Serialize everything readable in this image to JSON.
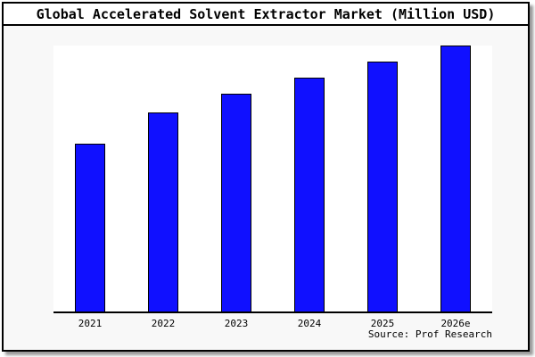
{
  "title_bar": {
    "title": "Global Accelerated Solvent Extractor Market (Million USD)"
  },
  "footer": {
    "source": "Source: Prof Research"
  },
  "colors": {
    "bar_fill": "#1010ff",
    "bar_border": "#000000",
    "frame_border": "#000000",
    "chart_background": "#f8f8f8",
    "plot_background": "#ffffff",
    "title_background": "#ffffff",
    "shadow": "#999999",
    "text": "#000000"
  },
  "chart_data": {
    "type": "bar",
    "title": "Global Accelerated Solvent Extractor Market (Million USD)",
    "categories": [
      "2021",
      "2022",
      "2023",
      "2024",
      "2025",
      "2026e"
    ],
    "values": [
      63,
      75,
      82,
      88,
      94,
      100
    ],
    "values_unit": "percent of tallest bar (no numeric y-axis labels are shown in the chart)",
    "xlabel": "",
    "ylabel": "",
    "ylim": [
      0,
      100
    ],
    "y_axis_labels_visible": false,
    "gridlines": false,
    "legend": "none",
    "annotations": [
      "Source: Prof Research"
    ]
  }
}
